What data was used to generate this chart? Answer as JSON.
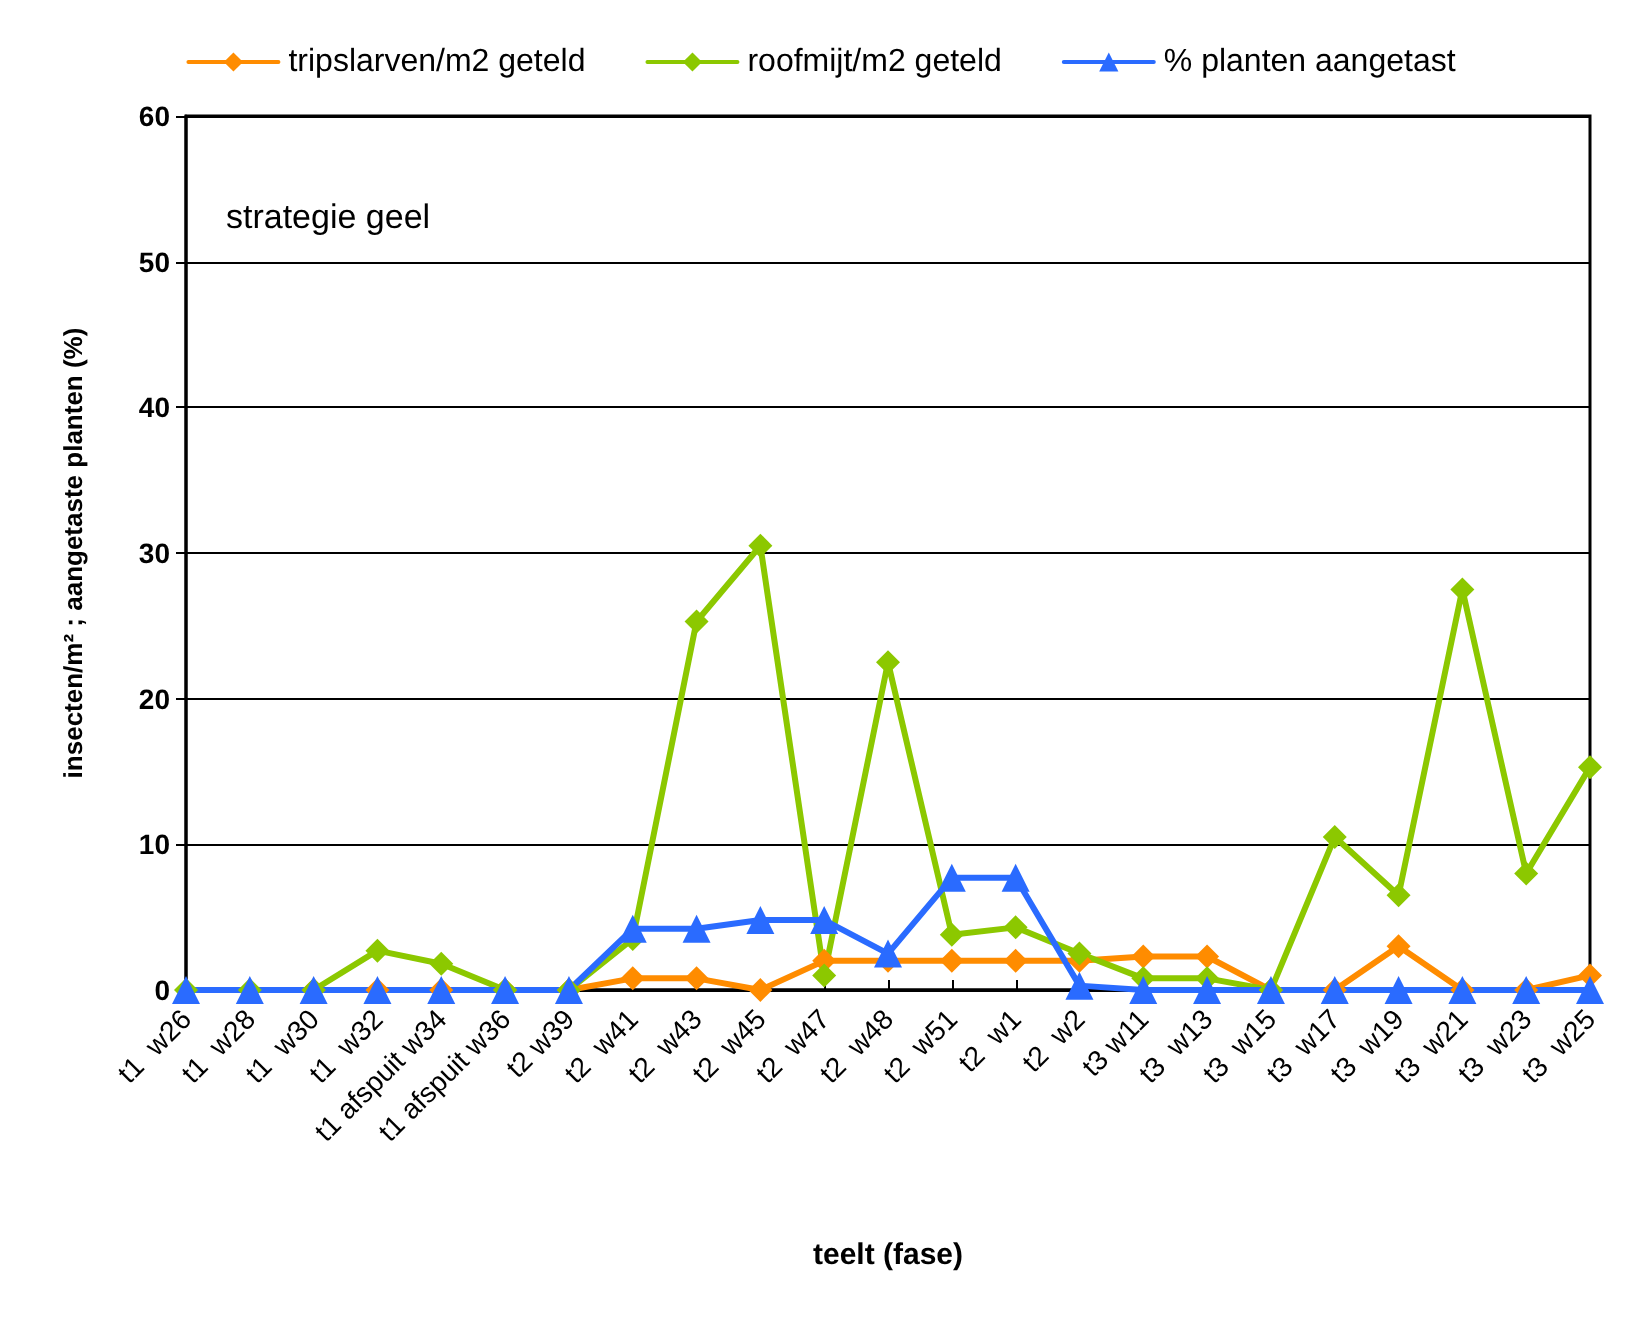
{
  "chart_data": {
    "type": "line",
    "title": null,
    "xlabel": "teelt (fase)",
    "ylabel": "insecten/m² ; aangetaste planten (%)",
    "annotations": [
      "strategie geel"
    ],
    "categories": [
      "t1  w26",
      "t1  w28",
      "t1  w30",
      "t1  w32",
      "t1 afspuit w34",
      "t1 afspuit w36",
      "t2 w39",
      "t2  w41",
      "t2  w43",
      "t2  w45",
      "t2  w47",
      "t2  w48",
      "t2  w51",
      "t2  w1",
      "t2  w2",
      "t3 w11",
      "t3  w13",
      "t3  w15",
      "t3  w17",
      "t3  w19",
      "t3  w21",
      "t3  w23",
      "t3  w25"
    ],
    "series": [
      {
        "name": "tripslarven/m2 geteld",
        "color": "#ff8c00",
        "marker": "diamond",
        "values": [
          null,
          null,
          0,
          0,
          0,
          0,
          0,
          0.8,
          0.8,
          0,
          2,
          2,
          2,
          2,
          2,
          2.3,
          2.3,
          0,
          0,
          3,
          0,
          0,
          1
        ]
      },
      {
        "name": "roofmijt/m2 geteld",
        "color": "#8cc800",
        "marker": "diamond",
        "values": [
          0,
          0,
          0,
          2.7,
          1.8,
          0,
          0,
          3.5,
          25.3,
          30.5,
          1,
          22.5,
          3.8,
          4.3,
          2.5,
          0.8,
          0.8,
          0,
          10.5,
          6.5,
          27.5,
          8,
          15.3
        ]
      },
      {
        "name": "% planten aangetast",
        "color": "#2a6bff",
        "marker": "triangle",
        "values": [
          0,
          0,
          0,
          0,
          0,
          0,
          0,
          4.2,
          4.2,
          4.8,
          4.8,
          2.5,
          7.7,
          7.7,
          0.3,
          0,
          0,
          0,
          0,
          0,
          0,
          0,
          0
        ]
      }
    ],
    "ylim": [
      0,
      60
    ],
    "yticks": [
      0,
      10,
      20,
      30,
      40,
      50,
      60
    ],
    "grid": "y",
    "legend": "top",
    "line_style": "solid"
  }
}
